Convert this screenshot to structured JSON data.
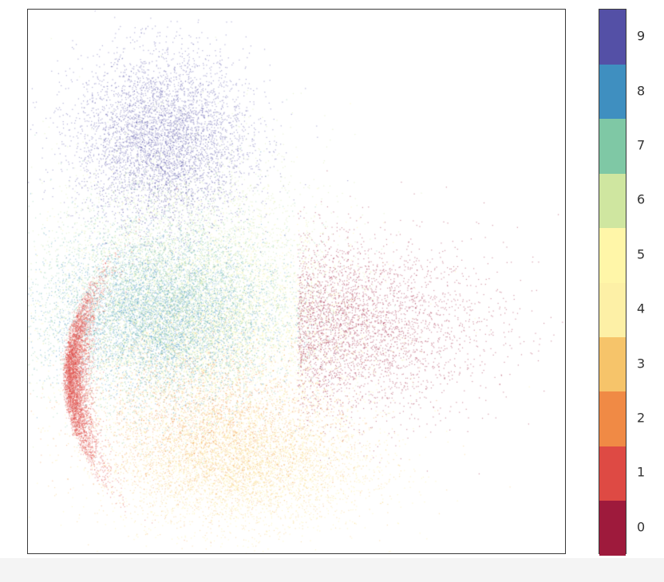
{
  "chart_data": {
    "type": "scatter",
    "title": "",
    "xlabel": "",
    "ylabel": "",
    "ticks_visible": false,
    "colormap": "Spectral",
    "colorbar": {
      "labels": [
        "0",
        "1",
        "2",
        "3",
        "4",
        "5",
        "6",
        "7",
        "8",
        "9"
      ],
      "colors": [
        "#9e0142",
        "#d53e4f",
        "#f46d43",
        "#fdae61",
        "#fee08b",
        "#ffffbf",
        "#e6f598",
        "#abdda4",
        "#66c2a5",
        "#3288bd",
        "#5e4fa2"
      ],
      "segment_colors": [
        "#9e1a3c",
        "#de4a44",
        "#f08a45",
        "#f6c46a",
        "#fdf0a6",
        "#fff6a8",
        "#cfe6a0",
        "#7fc8a5",
        "#3f8fc0",
        "#5450a6"
      ]
    },
    "clusters": [
      {
        "class": "0",
        "cx": 0.62,
        "cy": 0.42,
        "sx": 0.16,
        "sy": 0.08,
        "share": 0.09
      },
      {
        "class": "1",
        "cx": 0.07,
        "cy": 0.33,
        "sx": 0.03,
        "sy": 0.08,
        "share": 0.12
      },
      {
        "class": "2",
        "cx": 0.33,
        "cy": 0.26,
        "sx": 0.12,
        "sy": 0.07,
        "share": 0.05
      },
      {
        "class": "3",
        "cx": 0.38,
        "cy": 0.18,
        "sx": 0.12,
        "sy": 0.06,
        "share": 0.08
      },
      {
        "class": "4",
        "cx": 0.4,
        "cy": 0.16,
        "sx": 0.12,
        "sy": 0.06,
        "share": 0.07
      },
      {
        "class": "5",
        "cx": 0.33,
        "cy": 0.4,
        "sx": 0.14,
        "sy": 0.1,
        "share": 0.12
      },
      {
        "class": "6",
        "cx": 0.3,
        "cy": 0.52,
        "sx": 0.13,
        "sy": 0.12,
        "share": 0.1
      },
      {
        "class": "7",
        "cx": 0.25,
        "cy": 0.45,
        "sx": 0.12,
        "sy": 0.09,
        "share": 0.13
      },
      {
        "class": "8",
        "cx": 0.24,
        "cy": 0.44,
        "sx": 0.1,
        "sy": 0.07,
        "share": 0.11
      },
      {
        "class": "9",
        "cx": 0.25,
        "cy": 0.76,
        "sx": 0.08,
        "sy": 0.08,
        "share": 0.13
      }
    ]
  }
}
